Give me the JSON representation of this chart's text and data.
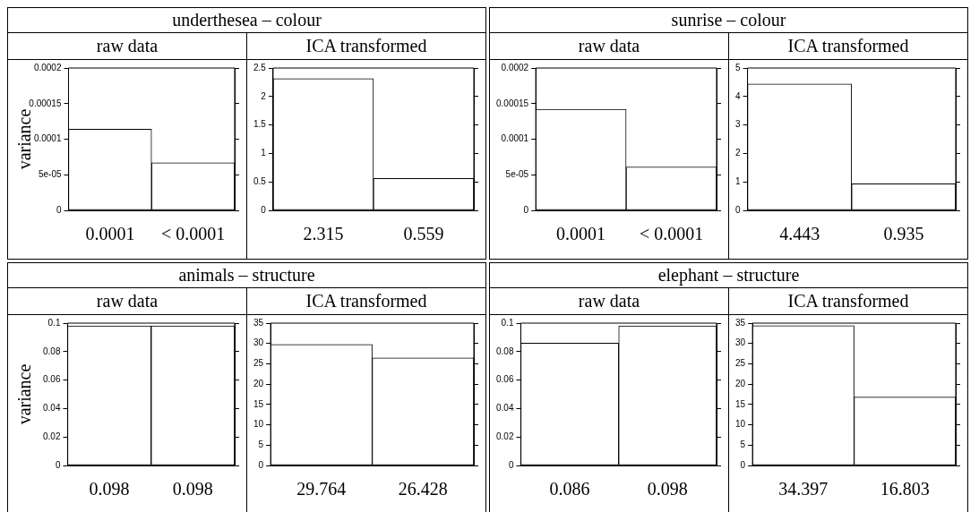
{
  "chart_data": [
    {
      "type": "bar",
      "title": "underthesea – colour",
      "subtitle": "raw data",
      "ylabel": "variance",
      "categories": [
        null,
        null
      ],
      "values": [
        0.000114,
        6.7e-05
      ],
      "color": "#ffffff",
      "value_labels": [
        "0.0001",
        "< 0.0001"
      ],
      "ylim": [
        0,
        0.0002
      ],
      "yticks": [
        0,
        {
          "value": 5e-05,
          "label": "5e-05"
        },
        0.0001,
        0.00015,
        0.0002
      ],
      "tick_labels": "y"
    },
    {
      "type": "bar",
      "subtitle": "ICA transformed",
      "categories": [
        null,
        null
      ],
      "values": [
        2.315,
        0.559
      ],
      "color": "#ffffff",
      "data_labels": true,
      "ylim": [
        0,
        2.5
      ],
      "yticks": [
        0,
        0.5,
        1,
        1.5,
        2,
        2.5
      ],
      "tick_labels": "y"
    },
    {
      "type": "bar",
      "title": "sunrise – colour",
      "subtitle": "raw data",
      "categories": [
        null,
        null
      ],
      "values": [
        0.000142,
        6.1e-05
      ],
      "color": "#ffffff",
      "value_labels": [
        "0.0001",
        "< 0.0001"
      ],
      "ylim": [
        0,
        0.0002
      ],
      "yticks": [
        0,
        {
          "value": 5e-05,
          "label": "5e-05"
        },
        0.0001,
        0.00015,
        0.0002
      ],
      "tick_labels": "y"
    },
    {
      "type": "bar",
      "subtitle": "ICA transformed",
      "categories": [
        null,
        null
      ],
      "values": [
        4.443,
        0.935
      ],
      "color": "#ffffff",
      "data_labels": true,
      "ylim": [
        0,
        5
      ],
      "yticks": [
        0,
        1,
        2,
        3,
        4,
        5
      ],
      "tick_labels": "y"
    },
    {
      "type": "bar",
      "title": "animals – structure",
      "subtitle": "raw data",
      "ylabel": "variance",
      "categories": [
        null,
        null
      ],
      "values": [
        0.098,
        0.098
      ],
      "color": "#ffffff",
      "data_labels": true,
      "ylim": [
        0,
        0.1
      ],
      "yticks": [
        0,
        0.02,
        0.04,
        0.06,
        0.08,
        0.1
      ],
      "tick_labels": "y"
    },
    {
      "type": "bar",
      "subtitle": "ICA transformed",
      "categories": [
        null,
        null
      ],
      "values": [
        29.764,
        26.428
      ],
      "color": "#ffffff",
      "data_labels": true,
      "ylim": [
        0,
        35
      ],
      "yticks": [
        0,
        5,
        10,
        15,
        20,
        25,
        30,
        35
      ],
      "tick_labels": "y"
    },
    {
      "type": "bar",
      "title": "elephant – structure",
      "subtitle": "raw data",
      "categories": [
        null,
        null
      ],
      "values": [
        0.086,
        0.098
      ],
      "color": "#ffffff",
      "data_labels": true,
      "ylim": [
        0,
        0.1
      ],
      "yticks": [
        0,
        0.02,
        0.04,
        0.06,
        0.08,
        0.1
      ],
      "tick_labels": "y"
    },
    {
      "type": "bar",
      "subtitle": "ICA transformed",
      "categories": [
        null,
        null
      ],
      "values": [
        34.397,
        16.803
      ],
      "color": "#ffffff",
      "data_labels": true,
      "ylim": [
        0,
        35
      ],
      "yticks": [
        0,
        5,
        10,
        15,
        20,
        25,
        30,
        35
      ],
      "tick_labels": "y"
    }
  ]
}
